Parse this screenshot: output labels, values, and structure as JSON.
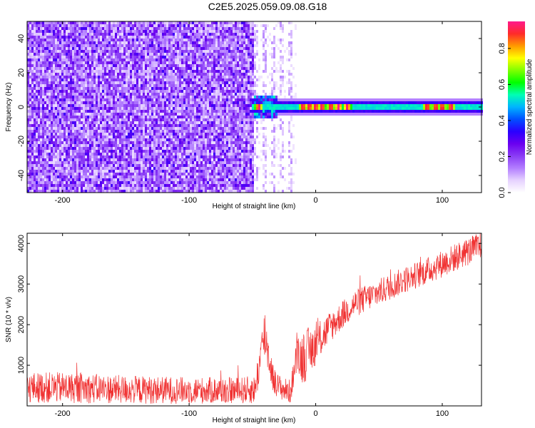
{
  "title": "C2E5.2025.059.09.08.G18",
  "chart_data": [
    {
      "type": "heatmap",
      "xlabel": "Height of straight line (km)",
      "ylabel": "Frequency (Hz)",
      "xlim": [
        -228,
        131
      ],
      "ylim": [
        -50,
        50
      ],
      "xticks": [
        -200,
        -100,
        0,
        100
      ],
      "yticks": [
        -40,
        -20,
        0,
        20,
        40
      ],
      "colorbar": {
        "label": "Normalized spectral amplitude",
        "range": [
          0,
          0.95
        ],
        "ticks": [
          "0.0",
          "0.2",
          "0.4",
          "0.6",
          "0.8"
        ],
        "tick_values": [
          0.0,
          0.2,
          0.4,
          0.6,
          0.8
        ],
        "colors": [
          "#ffffff",
          "#e6d2ff",
          "#b37eff",
          "#8a3cf5",
          "#6a00f0",
          "#2a00ff",
          "#0050ff",
          "#00b4ff",
          "#00ffb4",
          "#00ff00",
          "#7fff00",
          "#ffff00",
          "#ff9900",
          "#ff2a2a",
          "#ff1a8c"
        ]
      },
      "features": {
        "noise_region_x": [
          -228,
          -48
        ],
        "transition_region_x": [
          -48,
          -15
        ],
        "signal_band_center_hz": 0,
        "signal_band_halfwidth_hz": 3,
        "peak_x": [
          -45,
          -10,
          -5,
          0,
          5,
          12,
          18,
          25,
          88,
          95,
          100,
          107
        ]
      }
    },
    {
      "type": "line",
      "xlabel": "Height of straight line (km)",
      "ylabel": "SNR (10 * v/v)",
      "xlim": [
        -228,
        131
      ],
      "ylim": [
        0,
        4250
      ],
      "xticks": [
        -200,
        -100,
        0,
        100
      ],
      "yticks": [
        1000,
        2000,
        3000,
        4000
      ],
      "color": "#f03232",
      "series": [
        {
          "x": [
            -228,
            -200,
            -150,
            -100,
            -60,
            -48,
            -40,
            -37,
            -33,
            -30,
            -25,
            -20,
            -15,
            -10,
            0,
            10,
            20,
            30,
            50,
            70,
            90,
            110,
            131
          ],
          "values": [
            450,
            450,
            400,
            380,
            380,
            400,
            1800,
            1200,
            600,
            500,
            400,
            350,
            1200,
            1200,
            1500,
            1900,
            2200,
            2500,
            2800,
            3100,
            3350,
            3650,
            3950
          ],
          "spread": [
            380,
            380,
            350,
            330,
            330,
            350,
            700,
            450,
            350,
            300,
            300,
            300,
            400,
            700,
            500,
            400,
            350,
            350,
            330,
            330,
            330,
            350,
            350
          ]
        }
      ]
    }
  ]
}
